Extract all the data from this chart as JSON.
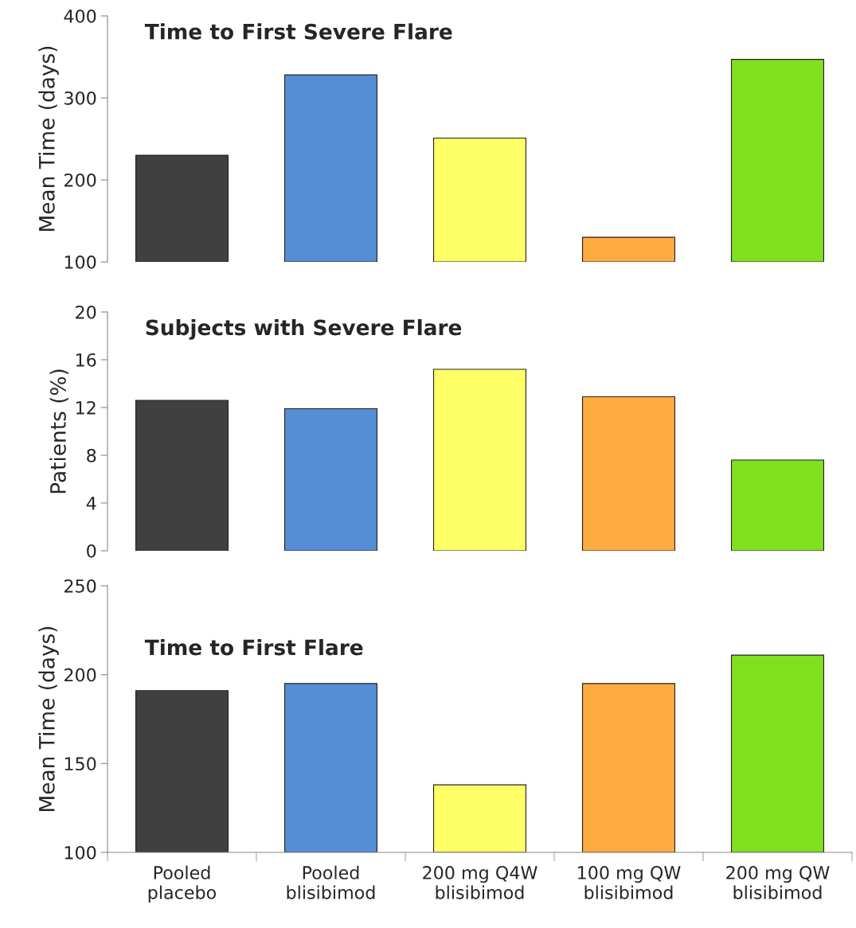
{
  "chart_data": [
    {
      "type": "bar",
      "title": "Time to First Severe Flare",
      "ylabel": "Mean Time (days)",
      "categories": [
        null,
        null,
        null,
        null,
        null
      ],
      "values": [
        230,
        328,
        251,
        130,
        347
      ],
      "colors": [
        "#404040",
        "#558ed5",
        "#ffff66",
        "#ffab40",
        "#80e020"
      ],
      "ylim": [
        100,
        400
      ],
      "yticks": [
        100,
        200,
        300,
        400
      ],
      "tick_labels": "y"
    },
    {
      "type": "bar",
      "title": "Subjects with Severe Flare",
      "ylabel": "Patients (%)",
      "categories": [
        null,
        null,
        null,
        null,
        null
      ],
      "values": [
        12.6,
        11.9,
        15.2,
        12.9,
        7.6
      ],
      "colors": [
        "#404040",
        "#558ed5",
        "#ffff66",
        "#ffab40",
        "#80e020"
      ],
      "ylim": [
        0,
        20
      ],
      "yticks": [
        0,
        4,
        8,
        12,
        16,
        20
      ],
      "tick_labels": "y"
    },
    {
      "type": "bar",
      "title": "Time to First Flare",
      "ylabel": "Mean Time (days)",
      "categories": [
        "Pooled\nplacebo",
        "Pooled\nblisibimod",
        "200 mg Q4W\nblisibimod",
        "100 mg QW\nblisibimod",
        "200 mg QW\nblisibimod"
      ],
      "values": [
        191,
        195,
        138,
        195,
        211
      ],
      "colors": [
        "#404040",
        "#558ed5",
        "#ffff66",
        "#ffab40",
        "#80e020"
      ],
      "ylim": [
        100,
        250
      ],
      "yticks": [
        100,
        150,
        200,
        250
      ]
    }
  ]
}
